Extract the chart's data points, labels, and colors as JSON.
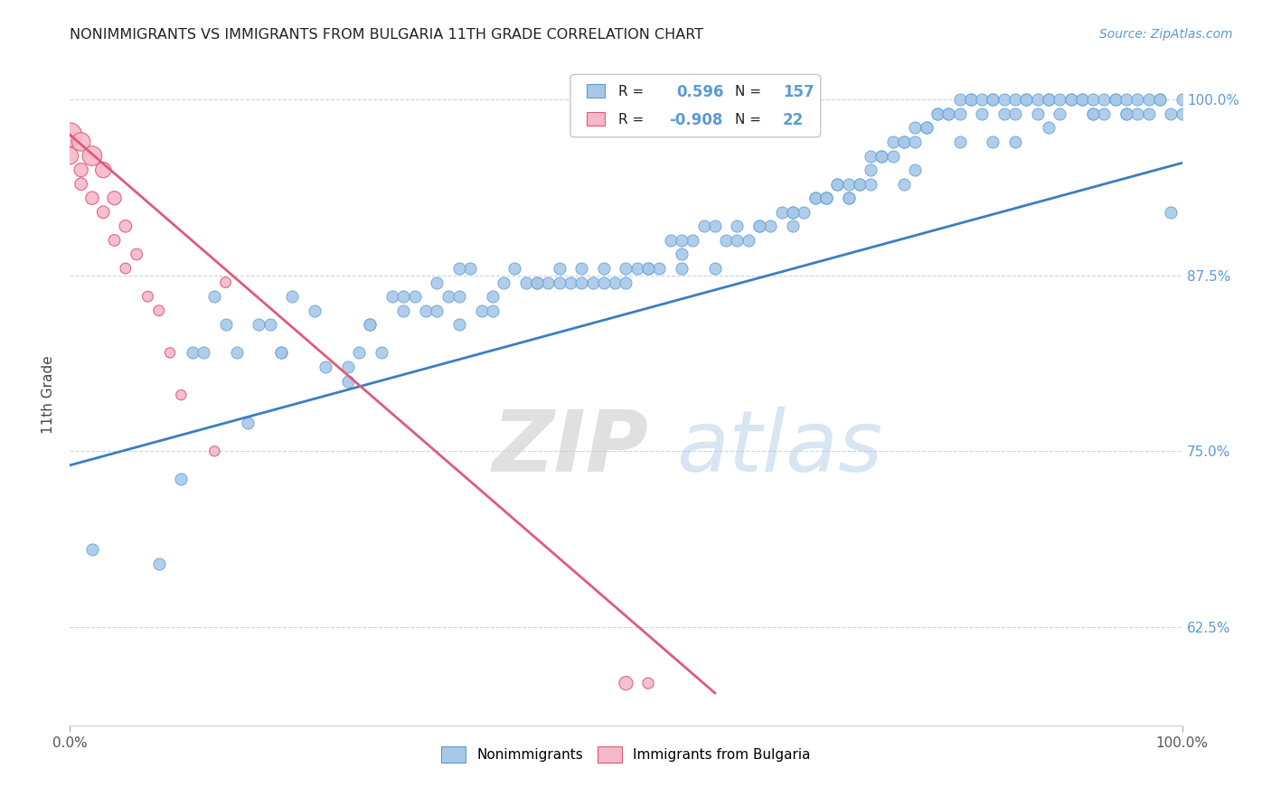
{
  "title": "NONIMMIGRANTS VS IMMIGRANTS FROM BULGARIA 11TH GRADE CORRELATION CHART",
  "source_text": "Source: ZipAtlas.com",
  "ylabel": "11th Grade",
  "r_nonimm": "0.596",
  "n_nonimm": "157",
  "r_immig": "-0.908",
  "n_immig": "22",
  "blue_color": "#5b9bd5",
  "pink_color": "#e05a7a",
  "blue_dot_color": "#a8c8e8",
  "pink_dot_color": "#f4b8c8",
  "trendline_blue": "#3a7fc1",
  "trendline_pink": "#e05a7a",
  "watermark_zip": "ZIP",
  "watermark_atlas": "atlas",
  "background": "#ffffff",
  "grid_color": "#c8d4e8",
  "x_min": 0.0,
  "x_max": 1.0,
  "y_min": 0.555,
  "y_max": 1.025,
  "blue_scatter_x": [
    0.02,
    0.08,
    0.1,
    0.11,
    0.13,
    0.14,
    0.15,
    0.17,
    0.18,
    0.19,
    0.2,
    0.22,
    0.23,
    0.25,
    0.26,
    0.27,
    0.28,
    0.29,
    0.3,
    0.31,
    0.32,
    0.33,
    0.34,
    0.35,
    0.36,
    0.37,
    0.38,
    0.39,
    0.4,
    0.41,
    0.42,
    0.43,
    0.44,
    0.45,
    0.46,
    0.47,
    0.48,
    0.49,
    0.5,
    0.51,
    0.52,
    0.53,
    0.54,
    0.55,
    0.56,
    0.57,
    0.58,
    0.59,
    0.6,
    0.61,
    0.62,
    0.63,
    0.64,
    0.65,
    0.65,
    0.66,
    0.67,
    0.67,
    0.68,
    0.68,
    0.69,
    0.69,
    0.7,
    0.7,
    0.71,
    0.71,
    0.72,
    0.72,
    0.73,
    0.73,
    0.74,
    0.74,
    0.75,
    0.75,
    0.76,
    0.76,
    0.77,
    0.77,
    0.78,
    0.78,
    0.79,
    0.79,
    0.8,
    0.8,
    0.81,
    0.81,
    0.82,
    0.82,
    0.83,
    0.83,
    0.84,
    0.84,
    0.85,
    0.85,
    0.86,
    0.86,
    0.87,
    0.87,
    0.88,
    0.88,
    0.89,
    0.89,
    0.9,
    0.9,
    0.91,
    0.91,
    0.92,
    0.92,
    0.93,
    0.93,
    0.94,
    0.94,
    0.95,
    0.95,
    0.96,
    0.96,
    0.97,
    0.97,
    0.98,
    0.98,
    0.99,
    0.99,
    1.0,
    1.0,
    0.95,
    0.12,
    0.16,
    0.3,
    0.35,
    0.25,
    0.48,
    0.55,
    0.6,
    0.65,
    0.38,
    0.42,
    0.5,
    0.72,
    0.75,
    0.68,
    0.55,
    0.58,
    0.62,
    0.44,
    0.52,
    0.8,
    0.83,
    0.85,
    0.35,
    0.19,
    0.27,
    0.33,
    0.46,
    0.7,
    0.76,
    0.88,
    0.92
  ],
  "blue_scatter_y": [
    0.68,
    0.67,
    0.73,
    0.82,
    0.86,
    0.84,
    0.82,
    0.84,
    0.84,
    0.82,
    0.86,
    0.85,
    0.81,
    0.81,
    0.82,
    0.84,
    0.82,
    0.86,
    0.85,
    0.86,
    0.85,
    0.87,
    0.86,
    0.84,
    0.88,
    0.85,
    0.85,
    0.87,
    0.88,
    0.87,
    0.87,
    0.87,
    0.88,
    0.87,
    0.88,
    0.87,
    0.88,
    0.87,
    0.87,
    0.88,
    0.88,
    0.88,
    0.9,
    0.89,
    0.9,
    0.91,
    0.91,
    0.9,
    0.91,
    0.9,
    0.91,
    0.91,
    0.92,
    0.92,
    0.91,
    0.92,
    0.93,
    0.93,
    0.93,
    0.93,
    0.94,
    0.94,
    0.94,
    0.93,
    0.94,
    0.94,
    0.95,
    0.96,
    0.96,
    0.96,
    0.96,
    0.97,
    0.97,
    0.97,
    0.97,
    0.98,
    0.98,
    0.98,
    0.99,
    0.99,
    0.99,
    0.99,
    1.0,
    0.99,
    1.0,
    1.0,
    1.0,
    0.99,
    1.0,
    1.0,
    1.0,
    0.99,
    0.99,
    1.0,
    1.0,
    1.0,
    0.99,
    1.0,
    1.0,
    1.0,
    1.0,
    0.99,
    1.0,
    1.0,
    1.0,
    1.0,
    0.99,
    1.0,
    1.0,
    0.99,
    1.0,
    1.0,
    1.0,
    0.99,
    0.99,
    1.0,
    1.0,
    0.99,
    1.0,
    1.0,
    0.99,
    0.92,
    1.0,
    0.99,
    0.99,
    0.82,
    0.77,
    0.86,
    0.88,
    0.8,
    0.87,
    0.9,
    0.9,
    0.92,
    0.86,
    0.87,
    0.88,
    0.94,
    0.94,
    0.93,
    0.88,
    0.88,
    0.91,
    0.87,
    0.88,
    0.97,
    0.97,
    0.97,
    0.86,
    0.82,
    0.84,
    0.85,
    0.87,
    0.93,
    0.95,
    0.98,
    0.99
  ],
  "pink_scatter_x": [
    0.0,
    0.0,
    0.01,
    0.01,
    0.01,
    0.02,
    0.02,
    0.03,
    0.03,
    0.04,
    0.04,
    0.05,
    0.05,
    0.06,
    0.07,
    0.08,
    0.09,
    0.1,
    0.13,
    0.5,
    0.52,
    0.14
  ],
  "pink_scatter_y": [
    0.975,
    0.96,
    0.97,
    0.95,
    0.94,
    0.96,
    0.93,
    0.95,
    0.92,
    0.93,
    0.9,
    0.91,
    0.88,
    0.89,
    0.86,
    0.85,
    0.82,
    0.79,
    0.75,
    0.585,
    0.585,
    0.87
  ],
  "pink_scatter_sizes": [
    300,
    150,
    180,
    100,
    80,
    200,
    90,
    130,
    80,
    100,
    70,
    80,
    60,
    70,
    60,
    60,
    55,
    55,
    55,
    100,
    65,
    60
  ]
}
